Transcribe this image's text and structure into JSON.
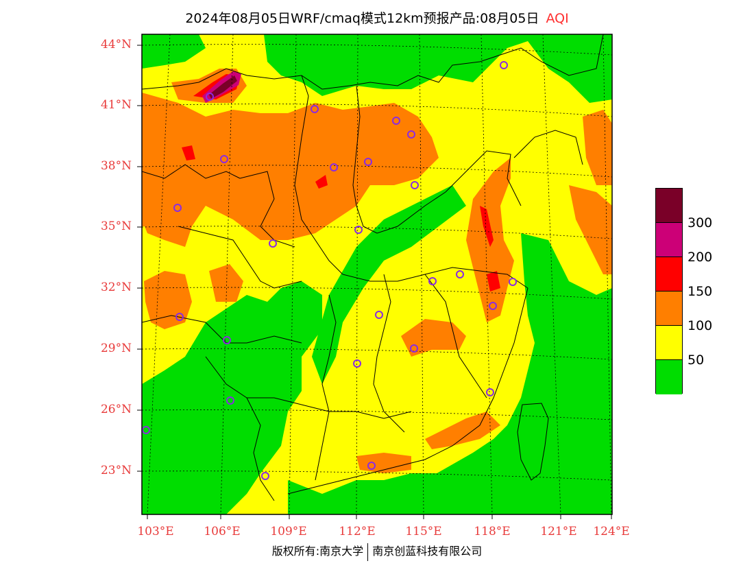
{
  "title": {
    "main": "2024年08月05日WRF/cmaq模式12km预报产品:08月05日",
    "variable": "AQI"
  },
  "axes": {
    "lat_ticks": [
      "44°N",
      "41°N",
      "38°N",
      "35°N",
      "32°N",
      "29°N",
      "26°N",
      "23°N"
    ],
    "lon_ticks": [
      "103°E",
      "106°E",
      "109°E",
      "112°E",
      "115°E",
      "118°E",
      "121°E",
      "124°E"
    ]
  },
  "legend": {
    "colors": [
      "#7a0028",
      "#cc0077",
      "#ff0000",
      "#ff7f00",
      "#ffff00",
      "#00dd00"
    ],
    "labels": [
      "300",
      "200",
      "150",
      "100",
      "50"
    ]
  },
  "footer": {
    "left": "版权所有:南京大学",
    "right": "南京创蓝科技有限公司"
  },
  "map_colors": {
    "good": "#00dd00",
    "moderate": "#ffff00",
    "usg": "#ff7f00",
    "unhealthy": "#ff0000",
    "very_unhealthy": "#cc0077",
    "hazardous": "#7a0028",
    "station": "#8a2be2"
  }
}
